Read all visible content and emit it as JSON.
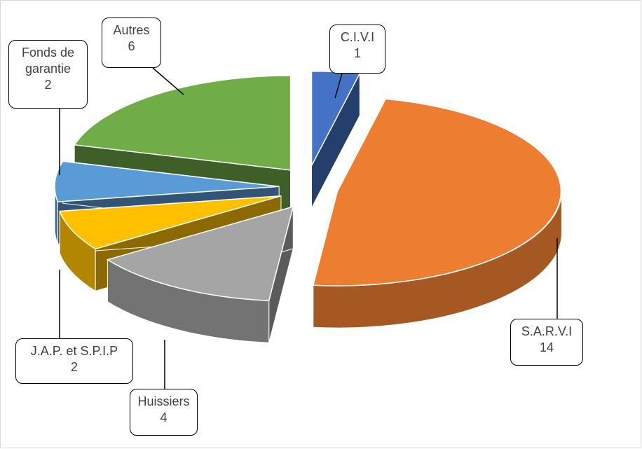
{
  "chart_data": {
    "type": "pie",
    "categories": [
      "C.I.V.I",
      "S.A.R.V.I",
      "Huissiers",
      "J.A.P. et S.P.I.P",
      "Fonds de garantie",
      "Autres"
    ],
    "values": [
      1,
      14,
      4,
      2,
      2,
      6
    ],
    "colors": [
      "#4472c4",
      "#ed7d31",
      "#a5a5a5",
      "#ffc000",
      "#5b9bd5",
      "#70ad47"
    ]
  }
}
